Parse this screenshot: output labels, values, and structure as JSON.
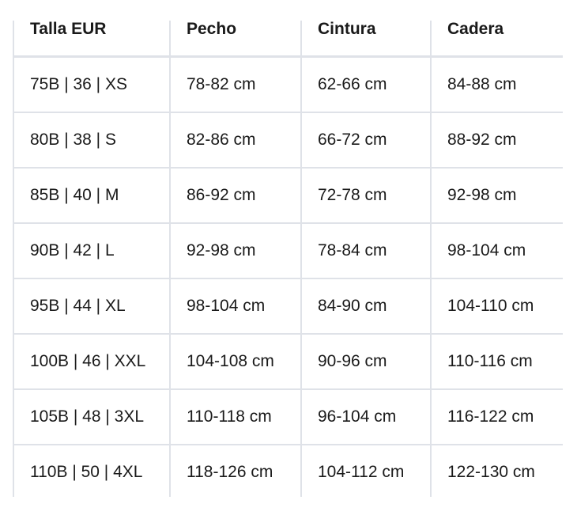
{
  "table": {
    "headers": [
      "Talla EUR",
      "Pecho",
      "Cintura",
      "Cadera"
    ],
    "rows": [
      [
        "75B | 36 | XS",
        "78-82 cm",
        "62-66 cm",
        "84-88 cm"
      ],
      [
        "80B | 38 | S",
        "82-86 cm",
        "66-72 cm",
        "88-92 cm"
      ],
      [
        "85B | 40 | M",
        "86-92 cm",
        "72-78 cm",
        "92-98 cm"
      ],
      [
        "90B | 42 | L",
        "92-98 cm",
        "78-84 cm",
        "98-104 cm"
      ],
      [
        "95B | 44 | XL",
        "98-104 cm",
        "84-90 cm",
        "104-110 cm"
      ],
      [
        "100B | 46 | XXL",
        "104-108 cm",
        "90-96 cm",
        "110-116 cm"
      ],
      [
        "105B | 48 | 3XL",
        "110-118 cm",
        "96-104 cm",
        "116-122 cm"
      ],
      [
        "110B | 50 | 4XL",
        "118-126 cm",
        "104-112 cm",
        "122-130 cm"
      ]
    ]
  },
  "colors": {
    "border": "#dfe2e8",
    "text": "#1a1a1a"
  }
}
